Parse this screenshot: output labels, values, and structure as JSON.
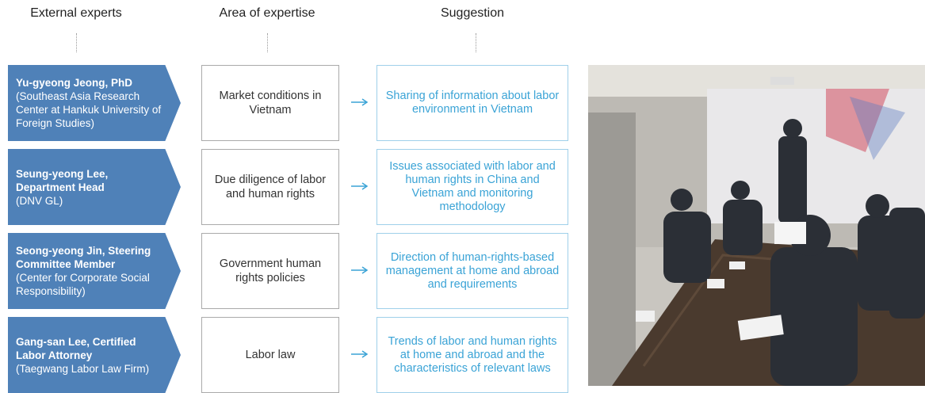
{
  "headers": [
    "External experts",
    "Area of expertise",
    "Suggestion"
  ],
  "rows": [
    {
      "expert_name": "Yu-gyeong Jeong, PhD",
      "expert_affiliation": "(Southeast Asia Research Center at Hankuk University of Foreign Studies)",
      "area": "Market conditions in Vietnam",
      "suggestion": "Sharing of information about labor environment in Vietnam"
    },
    {
      "expert_name": "Seung-yeong Lee, Department Head",
      "expert_affiliation": "(DNV GL)",
      "area": "Due diligence of labor and human rights",
      "suggestion": "Issues associated with labor and human rights in China and Vietnam and monitoring methodology"
    },
    {
      "expert_name": "Seong-yeong Jin, Steering Committee Member",
      "expert_affiliation": "(Center for Corporate Social Responsibility)",
      "area": "Government human rights policies",
      "suggestion": "Direction of human-rights-based management at home and abroad and requirements"
    },
    {
      "expert_name": "Gang-san Lee, Certified Labor Attorney",
      "expert_affiliation": "(Taegwang Labor Law Firm)",
      "area": "Labor law",
      "suggestion": "Trends of labor and human rights at home and abroad and the characteristics of relevant laws"
    }
  ]
}
